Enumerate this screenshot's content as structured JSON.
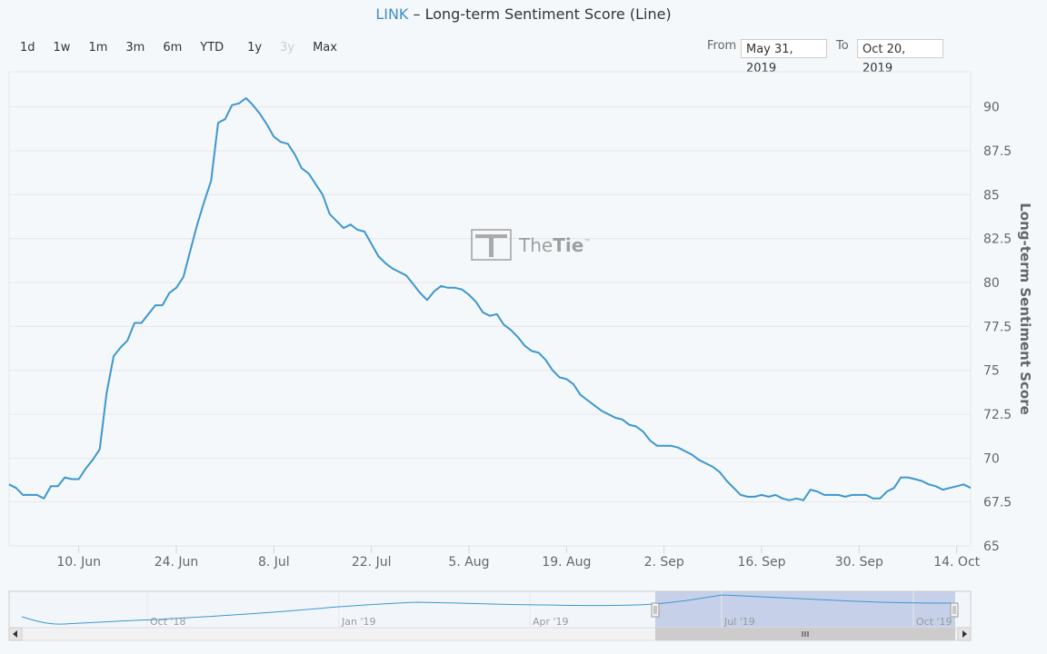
{
  "header": {
    "symbol": "LINK",
    "title_rest": " – Long-term Sentiment Score (Line)"
  },
  "range_selector": {
    "buttons": [
      "1d",
      "1w",
      "1m",
      "3m",
      "6m",
      "YTD",
      "1y",
      "3y",
      "Max"
    ],
    "disabled": [
      "3y"
    ],
    "from_label": "From",
    "from_value": "May 31, 2019",
    "to_label": "To",
    "to_value": "Oct 20, 2019"
  },
  "watermark": {
    "text_light": "The",
    "text_bold": "Tie",
    "mark": "™"
  },
  "colors": {
    "line": "#3d97d0",
    "navigator_mask": "#b7c4e3",
    "accent": "#3d8fc6"
  },
  "chart_data": {
    "type": "line",
    "title": "LINK – Long-term Sentiment Score (Line)",
    "ylabel": "Long-term Sentiment Score",
    "xlabel": "",
    "ylim": [
      65,
      92
    ],
    "y_ticks": [
      65,
      67.5,
      70,
      72.5,
      75,
      77.5,
      80,
      82.5,
      85,
      87.5,
      90
    ],
    "y_tick_labels": [
      "65",
      "67.5",
      "70",
      "72.5",
      "75",
      "77.5",
      "80",
      "82.5",
      "85",
      "87.5",
      "90"
    ],
    "x_ticks": [
      "10. Jun",
      "24. Jun",
      "8. Jul",
      "22. Jul",
      "5. Aug",
      "19. Aug",
      "2. Sep",
      "16. Sep",
      "30. Sep",
      "14. Oct"
    ],
    "grid": true,
    "legend": "none",
    "x_start": "May 31, 2019",
    "x_end": "Oct 20, 2019",
    "series": [
      {
        "values": [
          68.5,
          68.3,
          67.9,
          67.9,
          67.9,
          67.7,
          68.4,
          68.4,
          68.9,
          68.8,
          68.8,
          69.4,
          69.9,
          70.5,
          73.7,
          75.8,
          76.3,
          76.7,
          77.7,
          77.7,
          78.2,
          78.7,
          78.7,
          79.4,
          79.7,
          80.3,
          81.8,
          83.3,
          84.6,
          85.8,
          89.1,
          89.3,
          90.1,
          90.2,
          90.5,
          90.1,
          89.6,
          89.0,
          88.3,
          88.0,
          87.9,
          87.3,
          86.5,
          86.2,
          85.6,
          85.0,
          83.9,
          83.5,
          83.1,
          83.3,
          83.0,
          82.9,
          82.2,
          81.5,
          81.1,
          80.8,
          80.6,
          80.4,
          79.9,
          79.4,
          79.0,
          79.5,
          79.8,
          79.7,
          79.7,
          79.6,
          79.3,
          78.9,
          78.3,
          78.1,
          78.2,
          77.6,
          77.3,
          76.9,
          76.4,
          76.1,
          76.0,
          75.6,
          75.0,
          74.6,
          74.5,
          74.2,
          73.6,
          73.3,
          73.0,
          72.7,
          72.5,
          72.3,
          72.2,
          71.9,
          71.8,
          71.5,
          71.0,
          70.7,
          70.7,
          70.7,
          70.6,
          70.4,
          70.2,
          69.9,
          69.7,
          69.5,
          69.2,
          68.7,
          68.3,
          67.9,
          67.8,
          67.8,
          67.9,
          67.8,
          67.9,
          67.7,
          67.6,
          67.7,
          67.6,
          68.2,
          68.1,
          67.9,
          67.9,
          67.9,
          67.8,
          67.9,
          67.9,
          67.9,
          67.7,
          67.7,
          68.1,
          68.3,
          68.9,
          68.9,
          68.8,
          68.7,
          68.5,
          68.4,
          68.2,
          68.3,
          68.4,
          68.5,
          68.3
        ]
      }
    ],
    "navigator": {
      "x_ticks": [
        "Oct '18",
        "Jan '19",
        "Apr '19",
        "Jul '19",
        "Oct '19"
      ],
      "selected_range": [
        "May 31, 2019",
        "Oct 20, 2019"
      ]
    }
  }
}
